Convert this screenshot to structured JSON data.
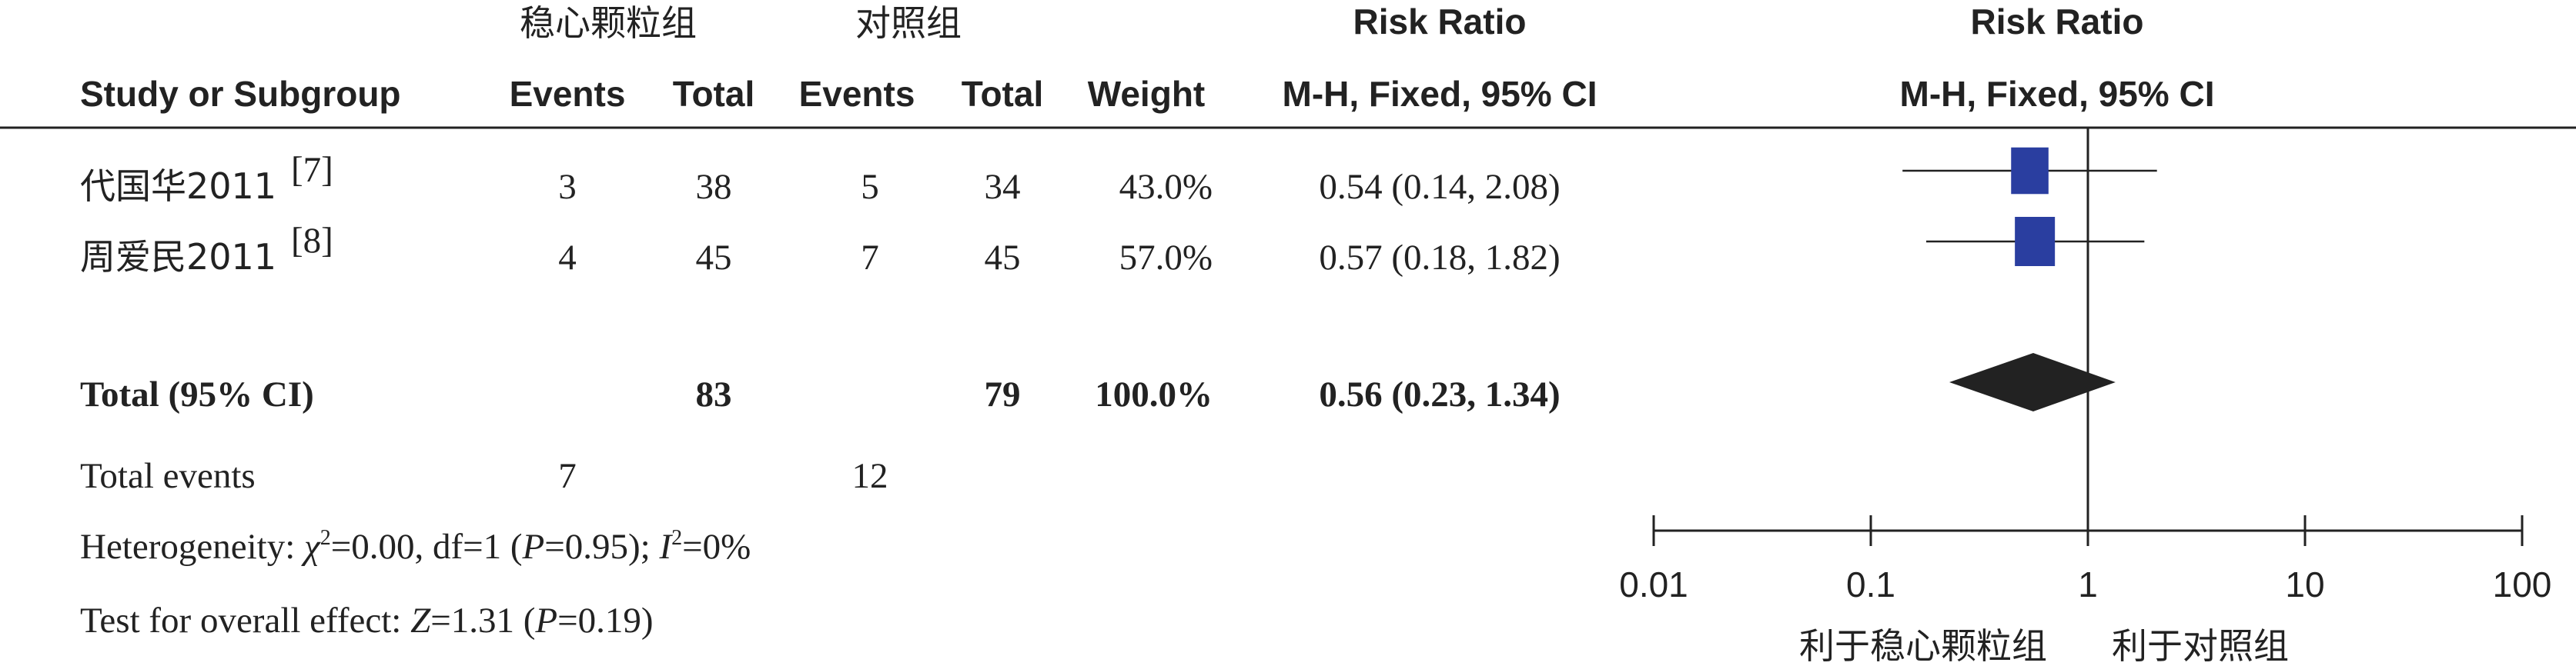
{
  "header": {
    "group1_name": "稳心颗粒组",
    "group2_name": "对照组",
    "col_study": "Study or Subgroup",
    "col_events1": "Events",
    "col_total1": "Total",
    "col_events2": "Events",
    "col_total2": "Total",
    "col_weight": "Weight",
    "col_rr_title": "Risk Ratio",
    "col_rr_method": "M-H, Fixed, 95% CI",
    "plot_title": "Risk Ratio",
    "plot_method": "M-H, Fixed, 95% CI"
  },
  "studies": [
    {
      "name": "代国华2011",
      "ref": "[7]",
      "events1": "3",
      "total1": "38",
      "events2": "5",
      "total2": "34",
      "weight": "43.0%",
      "ci_text": "0.54 (0.14, 2.08)"
    },
    {
      "name": "周爱民2011",
      "ref": "[8]",
      "events1": "4",
      "total1": "45",
      "events2": "7",
      "total2": "45",
      "weight": "57.0%",
      "ci_text": "0.57 (0.18, 1.82)"
    }
  ],
  "total": {
    "label": "Total (95% CI)",
    "total1": "83",
    "total2": "79",
    "weight": "100.0%",
    "ci_text": "0.56 (0.23, 1.34)"
  },
  "total_events": {
    "label": "Total events",
    "events1": "7",
    "events2": "12"
  },
  "heterogeneity": {
    "prefix": "Heterogeneity: ",
    "chi_symbol": "χ",
    "chi_value": "=0.00, df=1 (",
    "p_symbol": "P",
    "p_value": "=0.95); ",
    "i_symbol": "I",
    "i_value": "=0%"
  },
  "overall": {
    "prefix": "Test for overall effect: ",
    "z_symbol": "Z",
    "z_value": "=1.31 (",
    "p_symbol": "P",
    "p_value": "=0.19)"
  },
  "favours": {
    "left": "利于稳心颗粒组",
    "right": "利于对照组"
  },
  "colors": {
    "square": "#2a3ea0",
    "diamond": "#222222",
    "line": "#222222"
  },
  "chart_data": {
    "type": "forest",
    "x_scale": "log",
    "xlim": [
      0.01,
      100
    ],
    "xticks": [
      0.01,
      0.1,
      1,
      10,
      100
    ],
    "xtick_labels": [
      "0.01",
      "0.1",
      "1",
      "10",
      "100"
    ],
    "reference": 1,
    "studies": [
      {
        "name": "代国华2011",
        "rr": 0.54,
        "lower": 0.14,
        "upper": 2.08,
        "weight": 43.0
      },
      {
        "name": "周爱民2011",
        "rr": 0.57,
        "lower": 0.18,
        "upper": 1.82,
        "weight": 57.0
      }
    ],
    "pooled": {
      "rr": 0.56,
      "lower": 0.23,
      "upper": 1.34
    }
  }
}
